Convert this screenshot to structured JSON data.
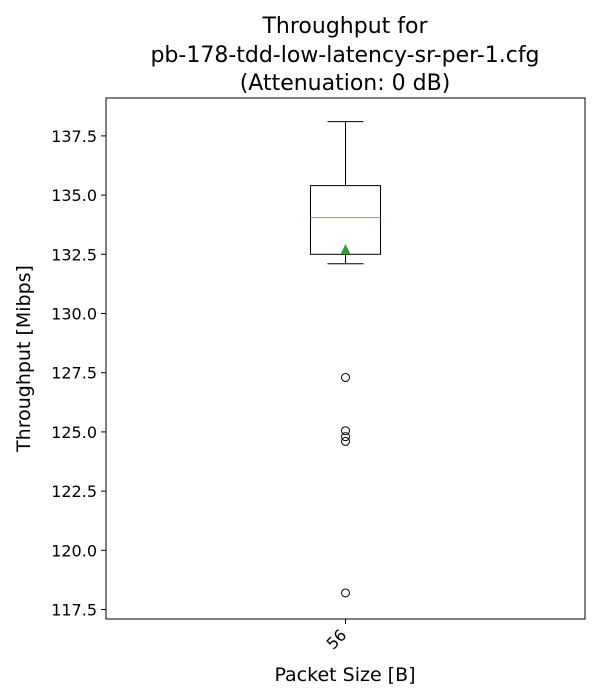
{
  "chart_data": {
    "type": "box",
    "title_lines": [
      "Throughput for",
      "pb-178-tdd-low-latency-sr-per-1.cfg",
      "(Attenuation: 0 dB)"
    ],
    "xlabel": "Packet Size [B]",
    "ylabel": "Throughput [Mibps]",
    "ylim": [
      117.1,
      139.1
    ],
    "yticks": [
      117.5,
      120.0,
      122.5,
      125.0,
      127.5,
      130.0,
      132.5,
      135.0,
      137.5
    ],
    "ytick_labels": [
      "117.5",
      "120.0",
      "122.5",
      "125.0",
      "127.5",
      "130.0",
      "132.5",
      "135.0",
      "137.5"
    ],
    "categories": [
      "56"
    ],
    "boxes": [
      {
        "category": "56",
        "whisker_low": 132.1,
        "q1": 132.5,
        "median": 134.05,
        "q3": 135.4,
        "whisker_high": 138.1,
        "mean": 132.7,
        "outliers": [
          127.3,
          125.05,
          124.8,
          124.6,
          118.2
        ]
      }
    ],
    "colors": {
      "box": "#000000",
      "median": "#ff7f0e",
      "mean": "#2ca02c"
    },
    "grid": false
  }
}
